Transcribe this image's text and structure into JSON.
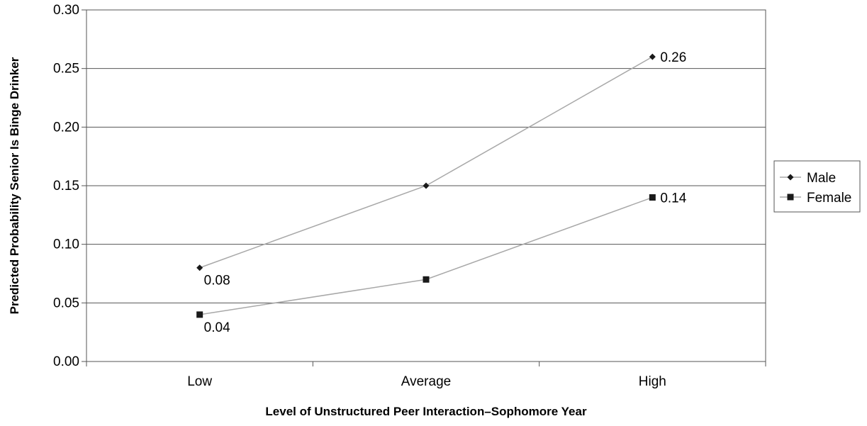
{
  "chart_data": {
    "type": "line",
    "title": "",
    "xlabel": "Level of Unstructured Peer Interaction–Sophomore Year",
    "ylabel": "Predicted Probability Senior Is Binge Drinker",
    "categories": [
      "Low",
      "Average",
      "High"
    ],
    "ylim": [
      0,
      0.3
    ],
    "yticks": [
      "0.00",
      "0.05",
      "0.10",
      "0.15",
      "0.20",
      "0.25",
      "0.30"
    ],
    "grid": true,
    "legend_position": "right",
    "series": [
      {
        "name": "Male",
        "marker": "diamond",
        "values": [
          0.08,
          0.15,
          0.26
        ],
        "labels": [
          "0.08",
          "",
          "0.26"
        ]
      },
      {
        "name": "Female",
        "marker": "square",
        "values": [
          0.04,
          0.07,
          0.14
        ],
        "labels": [
          "0.04",
          "",
          "0.14"
        ]
      }
    ],
    "colors": {
      "line": "#a8a8a8",
      "marker": "#1a1a1a",
      "grid": "#555555",
      "axis": "#555555"
    }
  }
}
